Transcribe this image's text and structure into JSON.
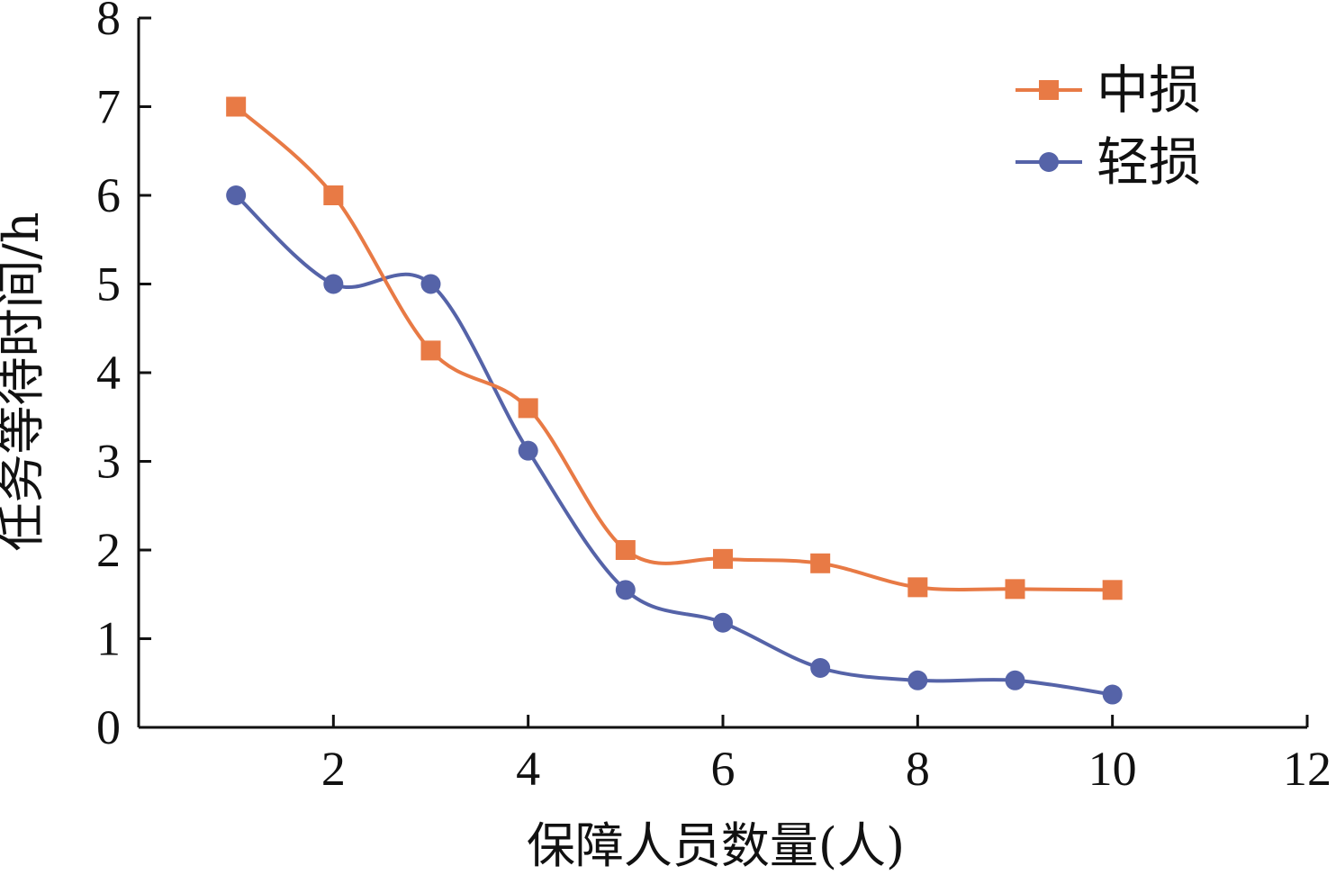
{
  "chart_data": {
    "type": "line",
    "xlabel": "保障人员数量(人)",
    "ylabel": "任务等待时间/h",
    "xlim": [
      0,
      12
    ],
    "ylim": [
      0,
      8
    ],
    "xticks": [
      2,
      4,
      6,
      8,
      10,
      12
    ],
    "yticks": [
      0,
      1,
      2,
      3,
      4,
      5,
      6,
      7,
      8
    ],
    "x_tick_labels": [
      "2",
      "4",
      "6",
      "8",
      "10",
      "12"
    ],
    "y_tick_labels": [
      "0",
      "1",
      "2",
      "3",
      "4",
      "5",
      "6",
      "7",
      "8"
    ],
    "grid": false,
    "legend_position": "top-right",
    "x": [
      1,
      2,
      3,
      4,
      5,
      6,
      7,
      8,
      9,
      10
    ],
    "series": [
      {
        "name": "中损",
        "marker": "square",
        "color": "#e87a45",
        "values": [
          7.0,
          6.0,
          4.25,
          3.6,
          2.0,
          1.9,
          1.85,
          1.58,
          1.56,
          1.55
        ]
      },
      {
        "name": "轻损",
        "marker": "circle",
        "color": "#5563a8",
        "values": [
          6.0,
          5.0,
          5.0,
          3.12,
          1.55,
          1.18,
          0.67,
          0.53,
          0.53,
          0.37
        ]
      }
    ]
  }
}
